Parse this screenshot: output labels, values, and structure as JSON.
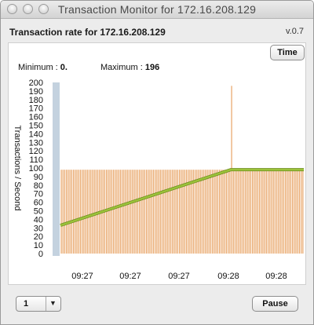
{
  "window": {
    "title": "Transaction Monitor for 172.16.208.129"
  },
  "header": {
    "title": "Transaction rate for 172.16.208.129",
    "version": "v.0.7"
  },
  "toolbar": {
    "time_button": "Time",
    "pause_button": "Pause"
  },
  "stats": {
    "min_label": "Minimum :",
    "min_value": "0.",
    "max_label": "Maximum :",
    "max_value": "196"
  },
  "footer": {
    "interval_value": "1"
  },
  "colors": {
    "bar": "#e8a466",
    "bar_edge": "#bf8a4c",
    "line": "#9bc23a",
    "scrollbar": "#b8c8d8"
  },
  "chart_data": {
    "type": "bar",
    "ylabel": "Transactions / Second",
    "ylim": [
      0,
      200
    ],
    "y_ticks": [
      0,
      10,
      20,
      30,
      40,
      50,
      60,
      70,
      80,
      90,
      100,
      110,
      120,
      130,
      140,
      150,
      160,
      170,
      180,
      190,
      200
    ],
    "x_tick_labels": [
      "09:27",
      "09:27",
      "09:27",
      "09:28",
      "09:28"
    ],
    "bars": {
      "count": 140,
      "typical_value": 98,
      "spike": {
        "index": 98,
        "value": 196
      }
    },
    "average_line": [
      [
        0,
        33
      ],
      [
        0.7,
        98
      ],
      [
        1.0,
        98
      ]
    ],
    "minimum": 0,
    "maximum": 196,
    "grid": false
  }
}
